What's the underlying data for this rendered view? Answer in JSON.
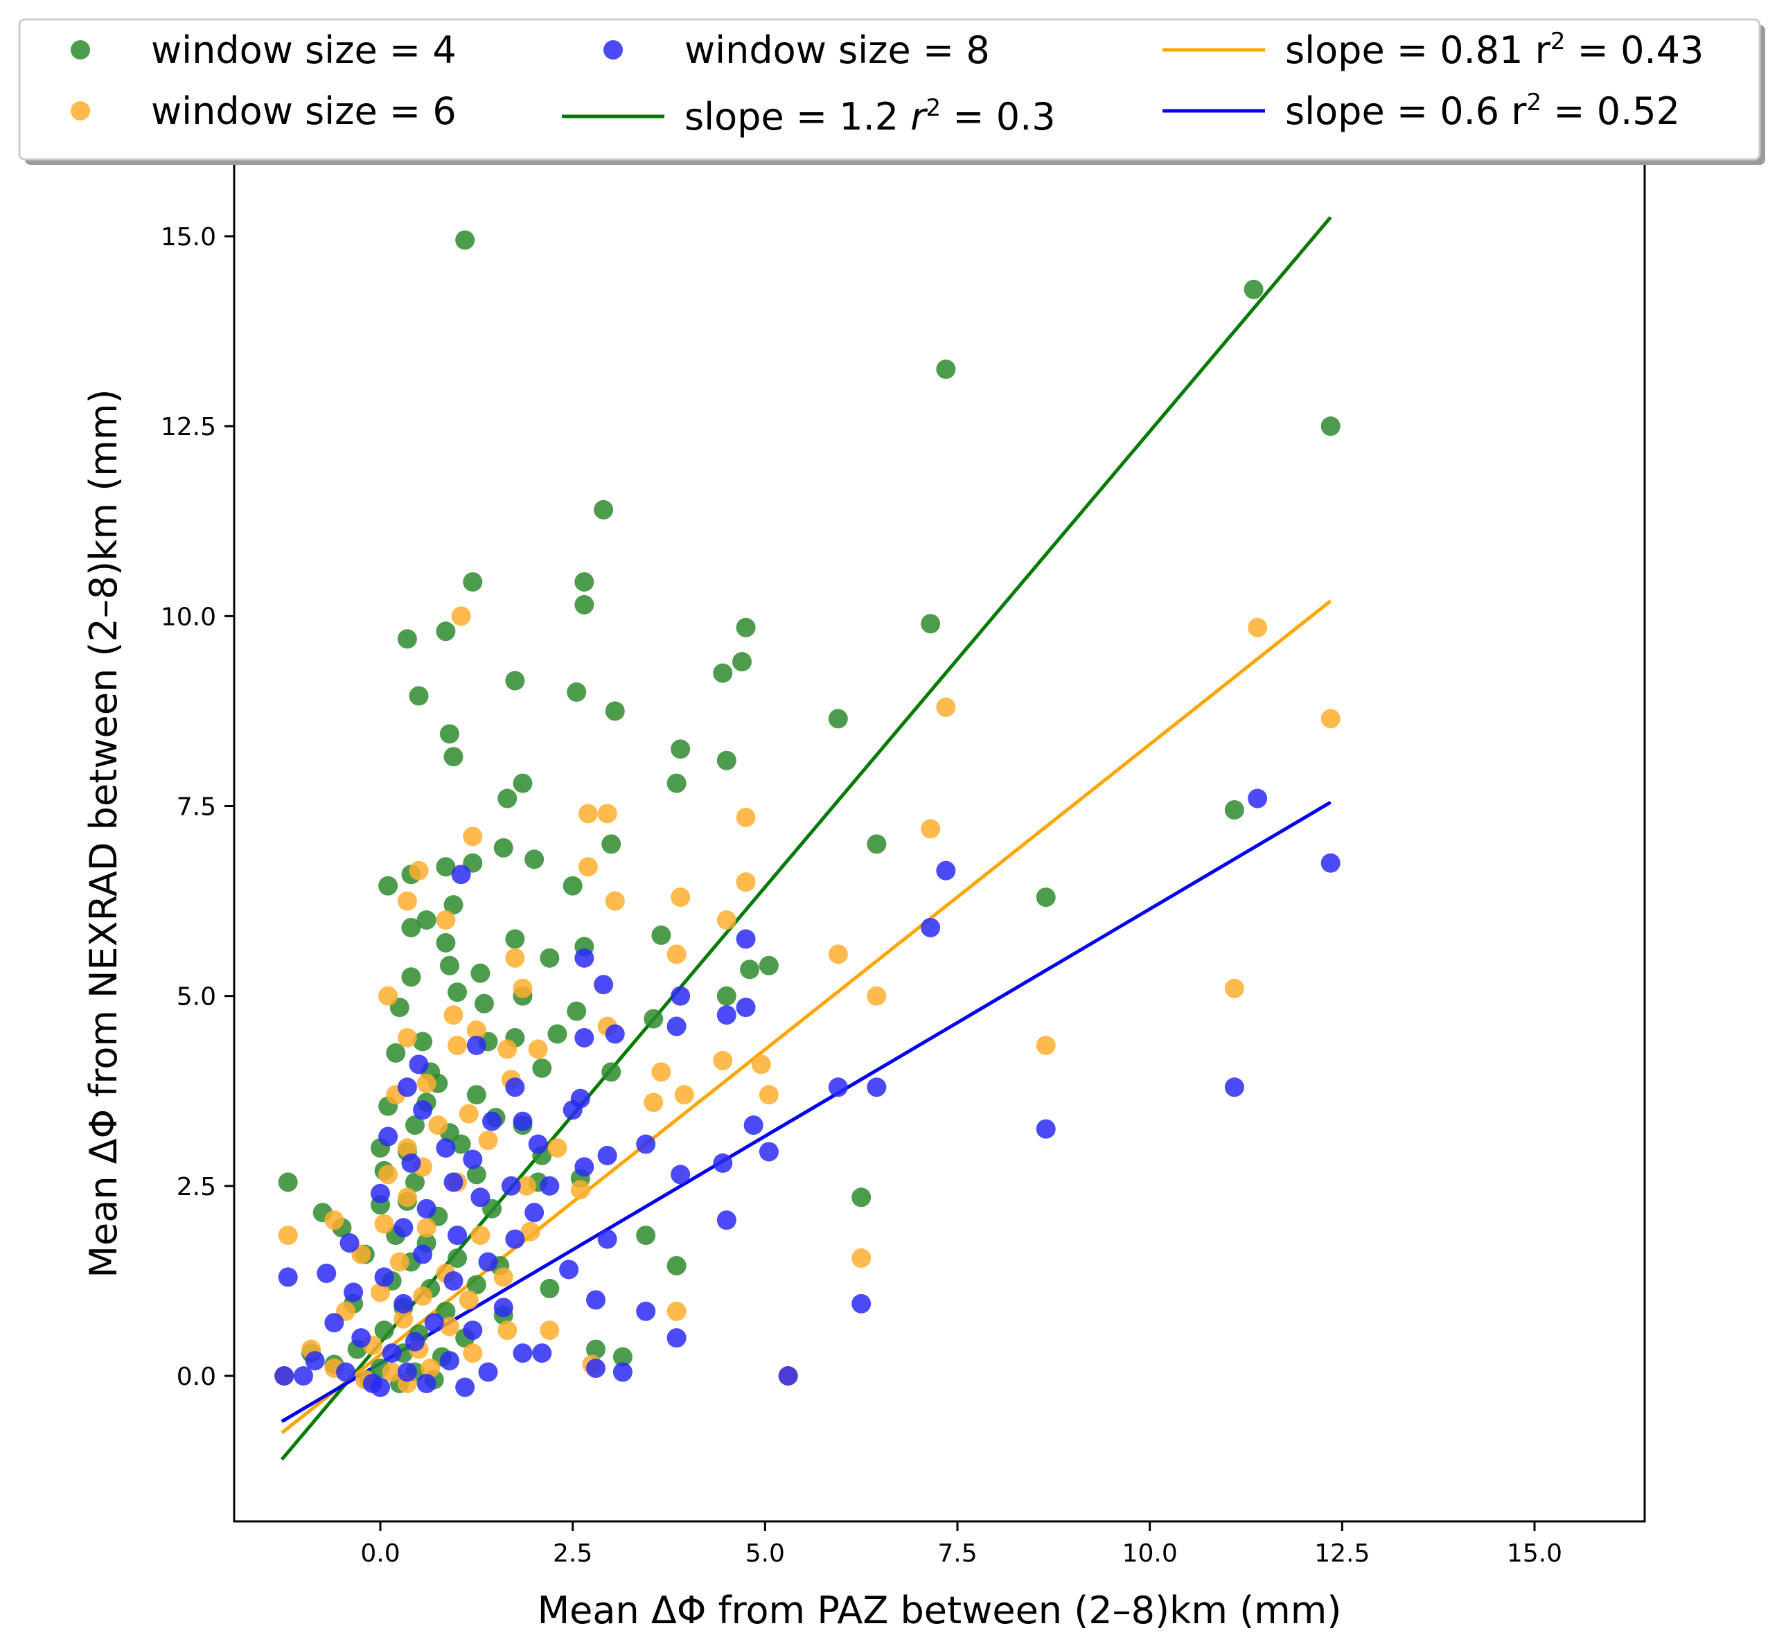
{
  "chart_data": {
    "type": "scatter",
    "xlabel": "Mean ΔΦ from PAZ between (2–8)km (mm)",
    "ylabel": "Mean ΔΦ from NEXRAD between (2–8)km (mm)",
    "xlim": [
      -1.9,
      16.5
    ],
    "ylim": [
      -1.9,
      16.0
    ],
    "xticks": [
      0.0,
      2.5,
      5.0,
      7.5,
      10.0,
      12.5,
      15.0
    ],
    "yticks": [
      0.0,
      2.5,
      5.0,
      7.5,
      10.0,
      12.5,
      15.0
    ],
    "xtick_labels": [
      "0.0",
      "2.5",
      "5.0",
      "7.5",
      "10.0",
      "12.5",
      "15.0"
    ],
    "ytick_labels": [
      "0.0",
      "2.5",
      "5.0",
      "7.5",
      "10.0",
      "12.5",
      "15.0"
    ],
    "grid": false,
    "legend_position": "top, above plot, 3 columns",
    "series": [
      {
        "name": "window size = 4",
        "kind": "scatter",
        "color": "#2e8b2e",
        "points": [
          [
            1.1,
            14.95
          ],
          [
            11.35,
            14.3
          ],
          [
            7.35,
            13.25
          ],
          [
            12.35,
            12.5
          ],
          [
            2.9,
            11.4
          ],
          [
            1.2,
            10.45
          ],
          [
            2.65,
            10.45
          ],
          [
            2.65,
            10.15
          ],
          [
            0.35,
            9.7
          ],
          [
            0.85,
            9.8
          ],
          [
            4.75,
            9.85
          ],
          [
            7.15,
            9.9
          ],
          [
            0.5,
            8.95
          ],
          [
            1.75,
            9.15
          ],
          [
            2.55,
            9.0
          ],
          [
            4.45,
            9.25
          ],
          [
            4.7,
            9.4
          ],
          [
            3.05,
            8.75
          ],
          [
            5.95,
            8.65
          ],
          [
            0.9,
            8.45
          ],
          [
            0.95,
            8.15
          ],
          [
            3.9,
            8.25
          ],
          [
            4.5,
            8.1
          ],
          [
            3.85,
            7.8
          ],
          [
            1.85,
            7.8
          ],
          [
            1.65,
            7.6
          ],
          [
            11.1,
            7.45
          ],
          [
            6.45,
            7.0
          ],
          [
            3.0,
            7.0
          ],
          [
            1.6,
            6.95
          ],
          [
            2.0,
            6.8
          ],
          [
            1.2,
            6.75
          ],
          [
            0.85,
            6.7
          ],
          [
            0.4,
            6.6
          ],
          [
            0.1,
            6.45
          ],
          [
            2.5,
            6.45
          ],
          [
            8.65,
            6.3
          ],
          [
            0.95,
            6.2
          ],
          [
            0.6,
            6.0
          ],
          [
            0.4,
            5.9
          ],
          [
            3.65,
            5.8
          ],
          [
            1.75,
            5.75
          ],
          [
            0.85,
            5.7
          ],
          [
            2.65,
            5.65
          ],
          [
            2.2,
            5.5
          ],
          [
            0.9,
            5.4
          ],
          [
            1.3,
            5.3
          ],
          [
            0.4,
            5.25
          ],
          [
            4.8,
            5.35
          ],
          [
            5.05,
            5.4
          ],
          [
            1.0,
            5.05
          ],
          [
            1.85,
            5.0
          ],
          [
            4.5,
            5.0
          ],
          [
            0.25,
            4.85
          ],
          [
            2.55,
            4.8
          ],
          [
            1.35,
            4.9
          ],
          [
            3.55,
            4.7
          ],
          [
            0.55,
            4.4
          ],
          [
            1.75,
            4.45
          ],
          [
            2.3,
            4.5
          ],
          [
            0.2,
            4.25
          ],
          [
            1.4,
            4.4
          ],
          [
            0.65,
            4.0
          ],
          [
            2.1,
            4.05
          ],
          [
            3.0,
            4.0
          ],
          [
            0.75,
            3.85
          ],
          [
            1.25,
            3.7
          ],
          [
            0.1,
            3.55
          ],
          [
            0.6,
            3.6
          ],
          [
            1.5,
            3.4
          ],
          [
            0.45,
            3.3
          ],
          [
            0.9,
            3.2
          ],
          [
            1.85,
            3.3
          ],
          [
            0.0,
            3.0
          ],
          [
            0.35,
            2.95
          ],
          [
            1.05,
            3.05
          ],
          [
            2.1,
            2.9
          ],
          [
            -1.2,
            2.55
          ],
          [
            0.05,
            2.7
          ],
          [
            0.45,
            2.55
          ],
          [
            1.25,
            2.65
          ],
          [
            2.05,
            2.55
          ],
          [
            2.6,
            2.6
          ],
          [
            6.25,
            2.35
          ],
          [
            -0.75,
            2.15
          ],
          [
            0.0,
            2.25
          ],
          [
            0.35,
            2.3
          ],
          [
            0.75,
            2.1
          ],
          [
            1.45,
            2.2
          ],
          [
            -0.5,
            1.95
          ],
          [
            0.2,
            1.85
          ],
          [
            0.6,
            1.75
          ],
          [
            3.45,
            1.85
          ],
          [
            3.85,
            1.45
          ],
          [
            -0.2,
            1.6
          ],
          [
            0.4,
            1.5
          ],
          [
            1.0,
            1.55
          ],
          [
            1.55,
            1.45
          ],
          [
            0.15,
            1.25
          ],
          [
            0.65,
            1.15
          ],
          [
            1.25,
            1.2
          ],
          [
            2.2,
            1.15
          ],
          [
            -0.35,
            0.95
          ],
          [
            0.3,
            0.9
          ],
          [
            0.85,
            0.85
          ],
          [
            1.6,
            0.8
          ],
          [
            0.05,
            0.6
          ],
          [
            0.5,
            0.55
          ],
          [
            1.1,
            0.5
          ],
          [
            -0.9,
            0.3
          ],
          [
            -0.3,
            0.35
          ],
          [
            0.3,
            0.3
          ],
          [
            0.8,
            0.25
          ],
          [
            2.8,
            0.35
          ],
          [
            3.15,
            0.25
          ],
          [
            -0.6,
            0.15
          ],
          [
            0.0,
            0.1
          ],
          [
            0.45,
            0.05
          ],
          [
            -1.25,
            0.0
          ],
          [
            -0.15,
            -0.05
          ],
          [
            0.25,
            -0.1
          ],
          [
            0.7,
            -0.05
          ],
          [
            5.3,
            0.0
          ]
        ]
      },
      {
        "name": "window size = 6",
        "kind": "scatter",
        "color": "#ffae2e",
        "points": [
          [
            1.05,
            10.0
          ],
          [
            11.4,
            9.85
          ],
          [
            7.35,
            8.8
          ],
          [
            12.35,
            8.65
          ],
          [
            2.7,
            7.4
          ],
          [
            2.95,
            7.4
          ],
          [
            1.2,
            7.1
          ],
          [
            4.75,
            7.35
          ],
          [
            7.15,
            7.2
          ],
          [
            2.7,
            6.7
          ],
          [
            0.5,
            6.65
          ],
          [
            4.75,
            6.5
          ],
          [
            0.35,
            6.25
          ],
          [
            3.05,
            6.25
          ],
          [
            3.9,
            6.3
          ],
          [
            4.5,
            6.0
          ],
          [
            0.85,
            6.0
          ],
          [
            1.75,
            5.5
          ],
          [
            3.85,
            5.55
          ],
          [
            5.95,
            5.55
          ],
          [
            1.85,
            5.1
          ],
          [
            0.1,
            5.0
          ],
          [
            6.45,
            5.0
          ],
          [
            11.1,
            5.1
          ],
          [
            0.95,
            4.75
          ],
          [
            1.25,
            4.55
          ],
          [
            2.95,
            4.6
          ],
          [
            0.35,
            4.45
          ],
          [
            1.0,
            4.35
          ],
          [
            1.65,
            4.3
          ],
          [
            2.05,
            4.3
          ],
          [
            8.65,
            4.35
          ],
          [
            4.45,
            4.15
          ],
          [
            4.95,
            4.1
          ],
          [
            3.65,
            4.0
          ],
          [
            0.6,
            3.85
          ],
          [
            1.7,
            3.9
          ],
          [
            0.2,
            3.7
          ],
          [
            3.95,
            3.7
          ],
          [
            5.05,
            3.7
          ],
          [
            3.55,
            3.6
          ],
          [
            1.15,
            3.45
          ],
          [
            0.75,
            3.3
          ],
          [
            0.35,
            3.0
          ],
          [
            1.4,
            3.1
          ],
          [
            2.3,
            3.0
          ],
          [
            0.55,
            2.75
          ],
          [
            0.1,
            2.65
          ],
          [
            1.0,
            2.55
          ],
          [
            1.9,
            2.5
          ],
          [
            0.35,
            2.35
          ],
          [
            2.6,
            2.45
          ],
          [
            -0.6,
            2.05
          ],
          [
            0.05,
            2.0
          ],
          [
            0.6,
            1.95
          ],
          [
            1.3,
            1.85
          ],
          [
            1.95,
            1.9
          ],
          [
            -1.2,
            1.85
          ],
          [
            6.25,
            1.55
          ],
          [
            -0.25,
            1.6
          ],
          [
            0.25,
            1.5
          ],
          [
            0.85,
            1.35
          ],
          [
            1.6,
            1.3
          ],
          [
            0.0,
            1.1
          ],
          [
            0.55,
            1.05
          ],
          [
            1.15,
            1.0
          ],
          [
            3.85,
            0.85
          ],
          [
            -0.45,
            0.85
          ],
          [
            0.3,
            0.75
          ],
          [
            0.9,
            0.65
          ],
          [
            1.65,
            0.6
          ],
          [
            2.2,
            0.6
          ],
          [
            -0.9,
            0.35
          ],
          [
            -0.1,
            0.4
          ],
          [
            0.5,
            0.35
          ],
          [
            1.2,
            0.3
          ],
          [
            2.75,
            0.15
          ],
          [
            -0.6,
            0.1
          ],
          [
            0.15,
            0.05
          ],
          [
            0.65,
            0.1
          ],
          [
            -1.25,
            0.0
          ],
          [
            -0.2,
            -0.05
          ],
          [
            0.35,
            -0.1
          ],
          [
            5.3,
            0.0
          ]
        ]
      },
      {
        "name": "window size = 8",
        "kind": "scatter",
        "color": "#2a2af5",
        "points": [
          [
            11.4,
            7.6
          ],
          [
            12.35,
            6.75
          ],
          [
            1.05,
            6.6
          ],
          [
            7.35,
            6.65
          ],
          [
            7.15,
            5.9
          ],
          [
            4.75,
            5.75
          ],
          [
            2.65,
            5.5
          ],
          [
            2.9,
            5.15
          ],
          [
            3.9,
            5.0
          ],
          [
            4.5,
            4.75
          ],
          [
            4.75,
            4.85
          ],
          [
            3.85,
            4.6
          ],
          [
            2.65,
            4.45
          ],
          [
            3.05,
            4.5
          ],
          [
            1.25,
            4.35
          ],
          [
            0.5,
            4.1
          ],
          [
            0.35,
            3.8
          ],
          [
            5.95,
            3.8
          ],
          [
            6.45,
            3.8
          ],
          [
            11.1,
            3.8
          ],
          [
            1.75,
            3.8
          ],
          [
            0.55,
            3.5
          ],
          [
            2.5,
            3.5
          ],
          [
            2.6,
            3.65
          ],
          [
            1.45,
            3.35
          ],
          [
            1.85,
            3.35
          ],
          [
            4.85,
            3.3
          ],
          [
            0.1,
            3.15
          ],
          [
            0.85,
            3.0
          ],
          [
            3.45,
            3.05
          ],
          [
            5.05,
            2.95
          ],
          [
            8.65,
            3.25
          ],
          [
            2.95,
            2.9
          ],
          [
            0.4,
            2.8
          ],
          [
            1.2,
            2.85
          ],
          [
            2.05,
            3.05
          ],
          [
            4.45,
            2.8
          ],
          [
            3.9,
            2.65
          ],
          [
            2.65,
            2.75
          ],
          [
            0.95,
            2.55
          ],
          [
            1.7,
            2.5
          ],
          [
            2.2,
            2.5
          ],
          [
            0.0,
            2.4
          ],
          [
            1.3,
            2.35
          ],
          [
            2.0,
            2.15
          ],
          [
            0.6,
            2.2
          ],
          [
            4.5,
            2.05
          ],
          [
            -0.4,
            1.75
          ],
          [
            0.3,
            1.95
          ],
          [
            1.0,
            1.85
          ],
          [
            1.75,
            1.8
          ],
          [
            2.95,
            1.8
          ],
          [
            -0.7,
            1.35
          ],
          [
            0.55,
            1.6
          ],
          [
            1.4,
            1.5
          ],
          [
            2.45,
            1.4
          ],
          [
            -1.2,
            1.3
          ],
          [
            0.05,
            1.3
          ],
          [
            0.95,
            1.25
          ],
          [
            -0.35,
            1.1
          ],
          [
            2.8,
            1.0
          ],
          [
            6.25,
            0.95
          ],
          [
            0.3,
            0.95
          ],
          [
            1.6,
            0.9
          ],
          [
            3.45,
            0.85
          ],
          [
            -0.6,
            0.7
          ],
          [
            0.7,
            0.7
          ],
          [
            1.2,
            0.6
          ],
          [
            -0.25,
            0.5
          ],
          [
            0.45,
            0.45
          ],
          [
            3.85,
            0.5
          ],
          [
            1.85,
            0.3
          ],
          [
            2.1,
            0.3
          ],
          [
            -0.85,
            0.2
          ],
          [
            0.15,
            0.3
          ],
          [
            0.9,
            0.2
          ],
          [
            -0.45,
            0.05
          ],
          [
            0.35,
            0.05
          ],
          [
            1.4,
            0.05
          ],
          [
            2.8,
            0.1
          ],
          [
            3.15,
            0.05
          ],
          [
            -1.25,
            0.0
          ],
          [
            -1.0,
            0.0
          ],
          [
            -0.1,
            -0.1
          ],
          [
            0.6,
            -0.1
          ],
          [
            1.1,
            -0.15
          ],
          [
            0.0,
            -0.15
          ],
          [
            5.3,
            0.0
          ]
        ]
      }
    ],
    "fits": [
      {
        "name": "slope = 1.2 r² = 0.3",
        "label_main": "slope = 1.2 ",
        "label_r": "r",
        "label_rest": " = 0.3",
        "color": "#007a00",
        "slope": 1.2,
        "x_range": [
          -1.28,
          12.35
        ],
        "y_range": [
          -1.1,
          15.25
        ]
      },
      {
        "name": "slope = 0.81 r² = 0.43",
        "label_main": "slope = 0.81 r",
        "label_r": "",
        "label_rest": " = 0.43",
        "color": "#ffa500",
        "slope": 0.81,
        "x_range": [
          -1.28,
          12.35
        ],
        "y_range": [
          -0.75,
          10.2
        ]
      },
      {
        "name": "slope = 0.6 r² = 0.52",
        "label_main": "slope = 0.6 r",
        "label_r": "",
        "label_rest": " = 0.52",
        "color": "#0000ee",
        "slope": 0.6,
        "x_range": [
          -1.28,
          12.35
        ],
        "y_range": [
          -0.6,
          7.55
        ]
      }
    ]
  }
}
